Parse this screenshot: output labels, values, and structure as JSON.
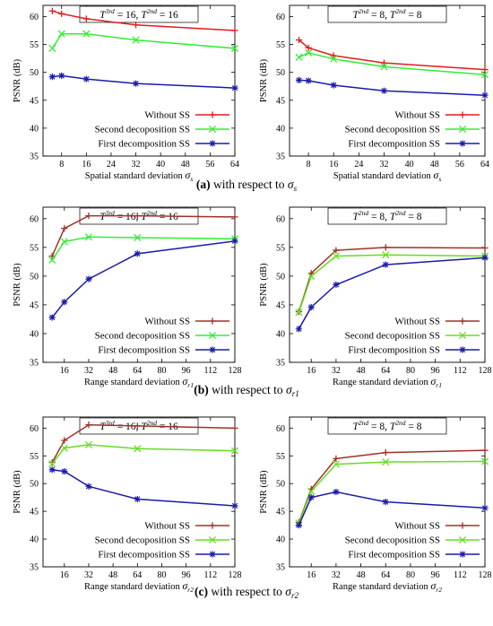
{
  "captions": [
    {
      "letter": "(a)",
      "text": "with respect to",
      "sym": "σ",
      "sub": "s"
    },
    {
      "letter": "(b)",
      "text": "with respect to",
      "sym": "σ",
      "sub": "r1"
    },
    {
      "letter": "(c)",
      "text": "with respect to",
      "sym": "σ",
      "sub": "r2"
    }
  ],
  "colors": {
    "red": "#e41a1c",
    "green": "#33ee33",
    "blue": "#1a1aaa",
    "brown": "#a0302a",
    "lime": "#66dd22"
  },
  "chart_data": [
    {
      "type": "line",
      "panel": "a-left",
      "title": {
        "base1": "T",
        "sup1": "3rd",
        "mid": " = 16, ",
        "base2": "T",
        "sup2": "2nd",
        "end": " = 16"
      },
      "xlabel": "Spatial standard deviation",
      "xsym": "σ",
      "xsub": "s",
      "ylabel": "PSNR (dB)",
      "xlim": [
        2,
        64
      ],
      "ylim": [
        35,
        62
      ],
      "xticks": [
        8,
        16,
        24,
        32,
        40,
        48,
        56,
        64
      ],
      "yticks": [
        35,
        40,
        45,
        50,
        55,
        60
      ],
      "legend_position": "bottom-right",
      "series": [
        {
          "name": "Without SS",
          "color": "#e41a1c",
          "marker": "plus",
          "x": [
            5,
            8,
            16,
            32,
            64
          ],
          "y": [
            61.0,
            60.5,
            59.6,
            58.5,
            57.5
          ]
        },
        {
          "name": "Second decoposition SS",
          "color": "#33ee33",
          "marker": "x",
          "x": [
            5,
            8,
            16,
            32,
            64
          ],
          "y": [
            54.3,
            56.9,
            56.9,
            55.8,
            54.3
          ]
        },
        {
          "name": "First decomposition SS",
          "color": "#1a1aaa",
          "marker": "star",
          "x": [
            5,
            8,
            16,
            32,
            64
          ],
          "y": [
            49.2,
            49.4,
            48.8,
            48.0,
            47.2
          ]
        }
      ]
    },
    {
      "type": "line",
      "panel": "a-right",
      "title": {
        "base1": "T",
        "sup1": "2nd",
        "mid": " = 8, ",
        "base2": "T",
        "sup2": "2nd",
        "end": " = 8"
      },
      "xlabel": "Spatial standard deviation",
      "xsym": "σ",
      "xsub": "s",
      "ylabel": "PSNR (dB)",
      "xlim": [
        2,
        64
      ],
      "ylim": [
        35,
        62
      ],
      "xticks": [
        8,
        16,
        24,
        32,
        40,
        48,
        56,
        64
      ],
      "yticks": [
        35,
        40,
        45,
        50,
        55,
        60
      ],
      "legend_position": "bottom-right",
      "series": [
        {
          "name": "Without SS",
          "color": "#e41a1c",
          "marker": "plus",
          "x": [
            5,
            8,
            16,
            32,
            64
          ],
          "y": [
            55.8,
            54.4,
            53.0,
            51.7,
            50.5
          ]
        },
        {
          "name": "Second decoposition SS",
          "color": "#33ee33",
          "marker": "x",
          "x": [
            5,
            8,
            16,
            32,
            64
          ],
          "y": [
            52.7,
            53.5,
            52.4,
            51.0,
            49.6
          ]
        },
        {
          "name": "First decomposition SS",
          "color": "#1a1aaa",
          "marker": "star",
          "x": [
            5,
            8,
            16,
            32,
            64
          ],
          "y": [
            48.6,
            48.5,
            47.7,
            46.7,
            45.9
          ]
        }
      ]
    },
    {
      "type": "line",
      "panel": "b-left",
      "title": {
        "base1": "T",
        "sup1": "3rd",
        "mid": " = 16, ",
        "base2": "T",
        "sup2": "2nd",
        "end": " = 16"
      },
      "xlabel": "Range standard deviation",
      "xsym": "σ",
      "xsub": "r1",
      "ylabel": "PSNR (dB)",
      "xlim": [
        2,
        128
      ],
      "ylim": [
        35,
        62
      ],
      "xticks": [
        16,
        32,
        48,
        64,
        80,
        96,
        112,
        128
      ],
      "yticks": [
        35,
        40,
        45,
        50,
        55,
        60
      ],
      "legend_position": "bottom-right",
      "series": [
        {
          "name": "Without SS",
          "color": "#a0302a",
          "marker": "plus",
          "x": [
            8,
            16,
            32,
            64,
            128
          ],
          "y": [
            53.5,
            58.3,
            60.5,
            60.5,
            60.3
          ]
        },
        {
          "name": "Second decoposition SS",
          "color": "#33ee33",
          "marker": "x",
          "x": [
            8,
            16,
            32,
            64,
            128
          ],
          "y": [
            52.8,
            56.0,
            56.8,
            56.7,
            56.5
          ]
        },
        {
          "name": "First decomposition SS",
          "color": "#1a1aaa",
          "marker": "star",
          "x": [
            8,
            16,
            32,
            64,
            128
          ],
          "y": [
            42.8,
            45.5,
            49.5,
            53.9,
            56.1
          ]
        }
      ]
    },
    {
      "type": "line",
      "panel": "b-right",
      "title": {
        "base1": "T",
        "sup1": "2nd",
        "mid": " = 8, ",
        "base2": "T",
        "sup2": "2nd",
        "end": " = 8"
      },
      "xlabel": "Range standard deviation",
      "xsym": "σ",
      "xsub": "r1",
      "ylabel": "PSNR (dB)",
      "xlim": [
        2,
        128
      ],
      "ylim": [
        35,
        62
      ],
      "xticks": [
        16,
        32,
        48,
        64,
        80,
        96,
        112,
        128
      ],
      "yticks": [
        35,
        40,
        45,
        50,
        55,
        60
      ],
      "legend_position": "bottom-right",
      "series": [
        {
          "name": "Without SS",
          "color": "#a0302a",
          "marker": "plus",
          "x": [
            8,
            16,
            32,
            64,
            128
          ],
          "y": [
            43.8,
            50.5,
            54.5,
            55.0,
            54.9
          ]
        },
        {
          "name": "Second decoposition SS",
          "color": "#66dd22",
          "marker": "x",
          "x": [
            8,
            16,
            32,
            64,
            128
          ],
          "y": [
            43.7,
            50.0,
            53.5,
            53.7,
            53.5
          ]
        },
        {
          "name": "First decomposition SS",
          "color": "#1a1aaa",
          "marker": "star",
          "x": [
            8,
            16,
            32,
            64,
            128
          ],
          "y": [
            40.8,
            44.6,
            48.5,
            52.0,
            53.2
          ]
        }
      ]
    },
    {
      "type": "line",
      "panel": "c-left",
      "title": {
        "base1": "T",
        "sup1": "3rd",
        "mid": " = 16, ",
        "base2": "T",
        "sup2": "2nd",
        "end": " = 16"
      },
      "xlabel": "Range standard deviation",
      "xsym": "σ",
      "xsub": "r2",
      "ylabel": "PSNR (dB)",
      "xlim": [
        2,
        128
      ],
      "ylim": [
        35,
        62
      ],
      "xticks": [
        16,
        32,
        48,
        64,
        80,
        96,
        112,
        128
      ],
      "yticks": [
        35,
        40,
        45,
        50,
        55,
        60
      ],
      "legend_position": "bottom-right",
      "series": [
        {
          "name": "Without SS",
          "color": "#a0302a",
          "marker": "plus",
          "x": [
            8,
            16,
            32,
            64,
            128
          ],
          "y": [
            53.8,
            57.8,
            60.6,
            60.4,
            60.0
          ]
        },
        {
          "name": "Second decoposition SS",
          "color": "#66dd22",
          "marker": "x",
          "x": [
            8,
            16,
            32,
            64,
            128
          ],
          "y": [
            53.6,
            56.4,
            57.0,
            56.3,
            55.9
          ]
        },
        {
          "name": "First decomposition SS",
          "color": "#1a1aaa",
          "marker": "star",
          "x": [
            8,
            16,
            32,
            64,
            128
          ],
          "y": [
            52.5,
            52.2,
            49.5,
            47.2,
            46.0
          ]
        }
      ]
    },
    {
      "type": "line",
      "panel": "c-right",
      "title": {
        "base1": "T",
        "sup1": "2nd",
        "mid": " = 8, ",
        "base2": "T",
        "sup2": "2nd",
        "end": " = 8"
      },
      "xlabel": "Range standard deviation",
      "xsym": "σ",
      "xsub": "r2",
      "ylabel": "PSNR (dB)",
      "xlim": [
        2,
        128
      ],
      "ylim": [
        35,
        62
      ],
      "xticks": [
        16,
        32,
        48,
        64,
        80,
        96,
        112,
        128
      ],
      "yticks": [
        35,
        40,
        45,
        50,
        55,
        60
      ],
      "legend_position": "bottom-right",
      "series": [
        {
          "name": "Without SS",
          "color": "#a0302a",
          "marker": "plus",
          "x": [
            8,
            16,
            32,
            64,
            128
          ],
          "y": [
            43.0,
            49.0,
            54.5,
            55.6,
            56.0
          ]
        },
        {
          "name": "Second decoposition SS",
          "color": "#66dd22",
          "marker": "x",
          "x": [
            8,
            16,
            32,
            64,
            128
          ],
          "y": [
            42.9,
            48.6,
            53.5,
            53.9,
            54.0
          ]
        },
        {
          "name": "First decomposition SS",
          "color": "#1a1aaa",
          "marker": "star",
          "x": [
            8,
            16,
            32,
            64,
            128
          ],
          "y": [
            42.5,
            47.5,
            48.5,
            46.7,
            45.6
          ]
        }
      ]
    }
  ]
}
